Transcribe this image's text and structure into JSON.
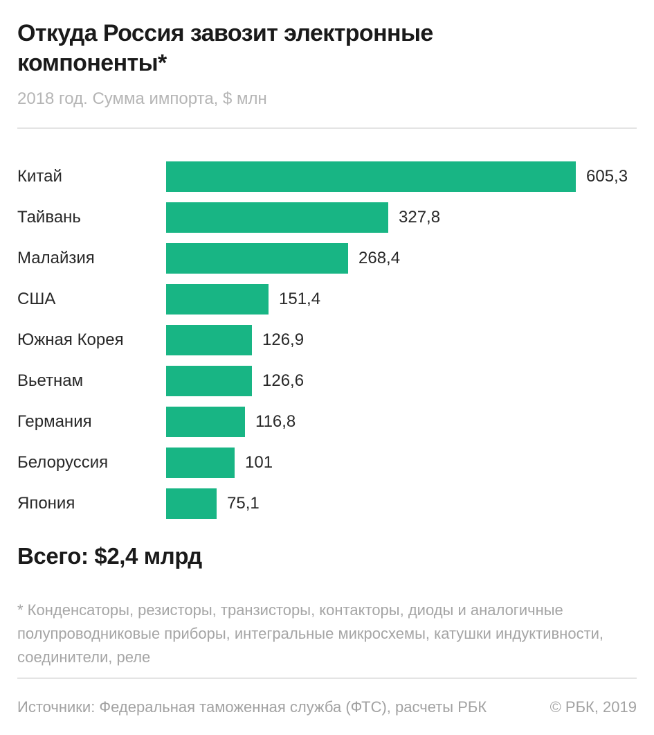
{
  "header": {
    "title": "Откуда Россия завозит электронные компоненты*",
    "subtitle": "2018 год. Сумма импорта, $ млн"
  },
  "chart_data": {
    "type": "bar",
    "orientation": "horizontal",
    "title": "Откуда Россия завозит электронные компоненты*",
    "subtitle": "2018 год. Сумма импорта, $ млн",
    "unit": "$ млн",
    "year": "2018",
    "categories": [
      "Китай",
      "Тайвань",
      "Малайзия",
      "США",
      "Южная Корея",
      "Вьетнам",
      "Германия",
      "Белоруссия",
      "Япония"
    ],
    "values": [
      605.3,
      327.8,
      268.4,
      151.4,
      126.9,
      126.6,
      116.8,
      101,
      75.1
    ],
    "value_labels": [
      "605,3",
      "327,8",
      "268,4",
      "151,4",
      "126,9",
      "126,6",
      "116,8",
      "101",
      "75,1"
    ],
    "bar_color": "#18b584",
    "xlim": [
      0,
      620
    ],
    "grid": false,
    "legend": false
  },
  "summary": {
    "total_label": "Всего: $2,4 млрд"
  },
  "footnote": "* Конденсаторы, резисторы, транзисторы, контакторы, диоды и аналогичные полупроводниковые приборы, интегральные микросхемы, катушки индуктивности, соединители, реле",
  "footer": {
    "sources": "Источники: Федеральная таможенная служба (ФТС), расчеты РБК",
    "copyright": "© РБК, 2019"
  }
}
